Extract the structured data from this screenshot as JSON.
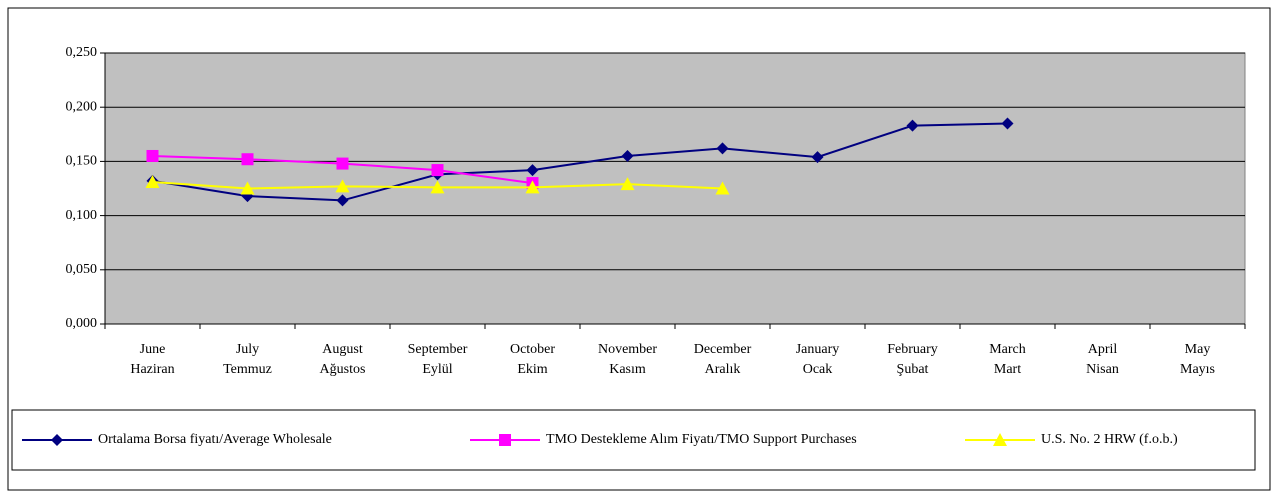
{
  "chart_data": {
    "type": "line",
    "categories": [
      [
        "June",
        "Haziran"
      ],
      [
        "July",
        "Temmuz"
      ],
      [
        "August",
        "Ağustos"
      ],
      [
        "September",
        "Eylül"
      ],
      [
        "October",
        "Ekim"
      ],
      [
        "November",
        "Kasım"
      ],
      [
        "December",
        "Aralık"
      ],
      [
        "January",
        "Ocak"
      ],
      [
        "February",
        "Şubat"
      ],
      [
        "March",
        "Mart"
      ],
      [
        "April",
        "Nisan"
      ],
      [
        "May",
        "Mayıs"
      ]
    ],
    "series": [
      {
        "name": "Ortalama Borsa fiyatı/Average Wholesale",
        "color": "#000080",
        "marker": "diamond",
        "values": [
          0.132,
          0.118,
          0.114,
          0.138,
          0.142,
          0.155,
          0.162,
          0.154,
          0.183,
          0.185,
          null,
          null
        ]
      },
      {
        "name": "TMO Destekleme Alım Fiyatı/TMO Support Purchases",
        "color": "#ff00ff",
        "marker": "square",
        "values": [
          0.155,
          0.152,
          0.148,
          0.142,
          0.13,
          null,
          null,
          null,
          null,
          null,
          null,
          null
        ]
      },
      {
        "name": "U.S. No. 2 HRW  (f.o.b.)",
        "color": "#ffff00",
        "marker": "triangle",
        "values": [
          0.131,
          0.125,
          0.127,
          0.126,
          0.126,
          0.129,
          0.125,
          null,
          null,
          null,
          null,
          null
        ]
      }
    ],
    "ylim": [
      0,
      0.25
    ],
    "yticks": [
      {
        "value": 0,
        "label": "0,000"
      },
      {
        "value": 0.05,
        "label": "0,050"
      },
      {
        "value": 0.1,
        "label": "0,100"
      },
      {
        "value": 0.15,
        "label": "0,150"
      },
      {
        "value": 0.2,
        "label": "0,200"
      },
      {
        "value": 0.25,
        "label": "0,250"
      }
    ],
    "grid": true,
    "legend": "bottom",
    "plot_background": "#c0c0c0"
  }
}
